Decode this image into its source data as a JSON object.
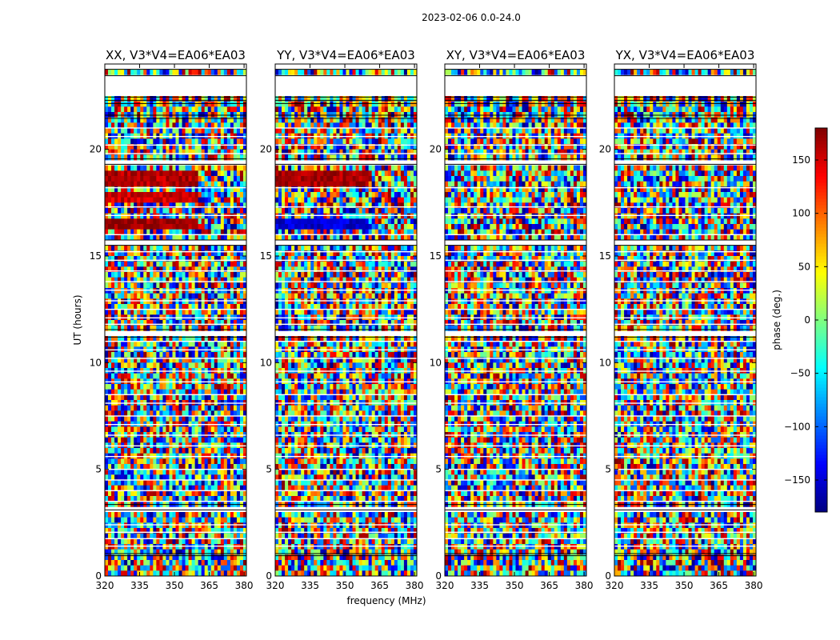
{
  "chart_data": {
    "type": "heatmap",
    "suptitle": "2023-02-06 0.0-24.0",
    "xlabel": "frequency (MHz)",
    "ylabel": "UT (hours)",
    "xlim": [
      320,
      381
    ],
    "ylim": [
      0,
      24
    ],
    "xticks": [
      320,
      335,
      350,
      365,
      380
    ],
    "yticks": [
      0,
      5,
      10,
      15,
      20
    ],
    "panels": [
      {
        "title": "XX, V3*V4=EA06*EA03",
        "pol": "XX",
        "coherent_bands": [
          [
            16.3,
            16.7,
            170
          ],
          [
            17.6,
            18.0,
            150
          ],
          [
            18.3,
            19.1,
            160
          ]
        ]
      },
      {
        "title": "YY, V3*V4=EA06*EA03",
        "pol": "YY",
        "coherent_bands": [
          [
            16.3,
            16.7,
            -150
          ],
          [
            18.3,
            19.1,
            165
          ]
        ]
      },
      {
        "title": "XY, V3*V4=EA06*EA03",
        "pol": "XY",
        "coherent_bands": []
      },
      {
        "title": "YX, V3*V4=EA06*EA03",
        "pol": "YX",
        "coherent_bands": []
      }
    ],
    "gaps_ut_hours": [
      [
        0.95,
        1.05
      ],
      [
        3.1,
        3.35
      ],
      [
        11.2,
        11.55
      ],
      [
        15.5,
        15.75
      ],
      [
        19.3,
        19.55
      ],
      [
        21.45,
        21.6
      ],
      [
        22.15,
        22.3
      ],
      [
        22.45,
        23.45
      ],
      [
        23.75,
        24.0
      ]
    ],
    "thin_gaps_ut_hours": [
      1.4,
      1.75,
      2.05,
      2.4,
      3.5,
      4.0,
      4.5,
      5.0,
      5.6,
      6.1,
      6.6,
      7.1,
      7.5,
      8.1,
      8.5,
      9.1,
      9.6,
      10.2,
      10.6,
      11.0,
      11.8,
      12.1,
      12.5,
      12.9,
      13.4,
      13.8,
      14.3,
      14.8,
      15.2,
      16.0,
      16.9,
      17.3,
      18.2,
      19.8,
      20.2,
      20.6,
      21.0
    ],
    "colorbar": {
      "label": "phase (deg.)",
      "range": [
        -180,
        180
      ],
      "ticks": [
        -150,
        -100,
        -50,
        0,
        50,
        100,
        150
      ],
      "colormap": "jet"
    }
  }
}
